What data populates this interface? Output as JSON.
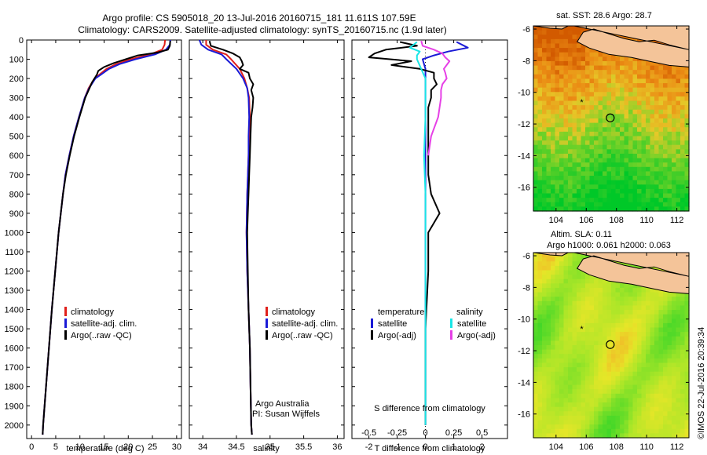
{
  "header": {
    "title_line1": "Argo profile: CS 5905018_20 13-Jul-2016 20160715_181 11.611S 107.59E",
    "title_line2": "Climatology: CARS2009. Satellite-adjusted climatology: synTS_20160715.nc (1.9d later)"
  },
  "colors": {
    "climatology": "#e0201b",
    "satellite": "#1a1ad6",
    "argo": "#000000",
    "sat_salinity": "#19e6e6",
    "argo_salinity_adj": "#e640e6",
    "land": "#f4c499"
  },
  "chart_data": [
    {
      "type": "line",
      "name": "temperature-profile",
      "xlabel": "temperature (deg C)",
      "ylabel": "",
      "xlim": [
        -1,
        31
      ],
      "ylim": [
        2070,
        0
      ],
      "xticks": [
        0,
        5,
        10,
        15,
        20,
        25,
        30
      ],
      "yticks": [
        0,
        100,
        200,
        300,
        400,
        500,
        600,
        700,
        800,
        900,
        1000,
        1100,
        1200,
        1300,
        1400,
        1500,
        1600,
        1700,
        1800,
        1900,
        2000
      ],
      "legend": [
        "climatology",
        "satellite-adj. clim.",
        "Argo(..raw -QC)"
      ],
      "series": [
        {
          "name": "climatology",
          "color": "#e0201b",
          "depth": [
            0,
            25,
            50,
            75,
            100,
            125,
            150,
            200,
            250,
            300,
            400,
            500,
            600,
            700,
            800,
            1000,
            1200,
            1400,
            1600,
            1800,
            2000,
            2050
          ],
          "values": [
            27.6,
            27.5,
            27.0,
            24.5,
            20.5,
            17.5,
            15.5,
            13.0,
            11.8,
            11.0,
            9.8,
            8.7,
            7.8,
            7.0,
            6.5,
            5.6,
            4.9,
            4.2,
            3.6,
            3.0,
            2.4,
            2.3
          ]
        },
        {
          "name": "satellite-adj. clim.",
          "color": "#1a1ad6",
          "depth": [
            0,
            25,
            50,
            75,
            100,
            125,
            150,
            200,
            250,
            300,
            400,
            500,
            600,
            700,
            800,
            1000,
            1200,
            1400,
            1600,
            1800,
            2000,
            2050
          ],
          "values": [
            28.7,
            28.6,
            27.8,
            25.5,
            21.5,
            18.2,
            16.0,
            13.2,
            11.9,
            11.0,
            9.8,
            8.7,
            7.8,
            7.0,
            6.5,
            5.6,
            4.9,
            4.2,
            3.6,
            3.0,
            2.4,
            2.3
          ]
        },
        {
          "name": "Argo(..raw -QC)",
          "color": "#000000",
          "depth": [
            5,
            30,
            50,
            65,
            80,
            100,
            120,
            140,
            160,
            180,
            200,
            220,
            250,
            300,
            400,
            500,
            600,
            700,
            800,
            1000,
            1200,
            1400,
            1600,
            1800,
            2000,
            2050
          ],
          "values": [
            28.7,
            28.6,
            28.2,
            26.0,
            22.0,
            19.5,
            17.0,
            15.0,
            13.8,
            13.5,
            13.0,
            12.5,
            12.0,
            11.1,
            9.9,
            8.8,
            7.9,
            7.1,
            6.5,
            5.6,
            4.9,
            4.2,
            3.6,
            3.0,
            2.4,
            2.3
          ]
        }
      ]
    },
    {
      "type": "line",
      "name": "salinity-profile",
      "xlabel": "salinity",
      "ylabel": "",
      "xlim": [
        33.8,
        36.1
      ],
      "ylim": [
        2070,
        0
      ],
      "xticks": [
        34,
        34.5,
        35,
        35.5,
        36
      ],
      "legend": [
        "climatology",
        "satellite-adj. clim.",
        "Argo(..raw -QC)"
      ],
      "series": [
        {
          "name": "climatology",
          "color": "#e0201b",
          "depth": [
            0,
            25,
            50,
            75,
            100,
            150,
            200,
            250,
            300,
            400,
            500,
            600,
            800,
            1000,
            1200,
            1400,
            1600,
            1800,
            2000,
            2050
          ],
          "values": [
            34.05,
            34.05,
            34.15,
            34.35,
            34.42,
            34.55,
            34.62,
            34.66,
            34.69,
            34.7,
            34.69,
            34.68,
            34.66,
            34.65,
            34.66,
            34.68,
            34.7,
            34.71,
            34.72,
            34.73
          ]
        },
        {
          "name": "satellite-adj. clim.",
          "color": "#1a1ad6",
          "depth": [
            0,
            25,
            50,
            75,
            100,
            150,
            200,
            250,
            300,
            400,
            500,
            600,
            800,
            1000,
            1200,
            1400,
            1600,
            1800,
            2000,
            2050
          ],
          "values": [
            33.95,
            33.98,
            34.08,
            34.28,
            34.35,
            34.5,
            34.6,
            34.66,
            34.68,
            34.69,
            34.68,
            34.68,
            34.66,
            34.65,
            34.66,
            34.68,
            34.7,
            34.71,
            34.72,
            34.73
          ]
        },
        {
          "name": "Argo(..raw -QC)",
          "color": "#000000",
          "depth": [
            5,
            30,
            50,
            70,
            90,
            110,
            130,
            150,
            170,
            200,
            230,
            260,
            300,
            350,
            400,
            500,
            600,
            700,
            800,
            900,
            1000,
            1200,
            1400,
            1600,
            1800,
            2000,
            2050
          ],
          "values": [
            34.1,
            34.12,
            34.3,
            34.45,
            34.55,
            34.58,
            34.6,
            34.55,
            34.68,
            34.7,
            34.75,
            34.72,
            34.75,
            34.74,
            34.72,
            34.71,
            34.7,
            34.69,
            34.68,
            34.67,
            34.66,
            34.67,
            34.68,
            34.7,
            34.71,
            34.72,
            34.73
          ]
        }
      ]
    },
    {
      "type": "line",
      "name": "difference-profile",
      "xlabel": "T difference from climatology",
      "xlabel_top": "S difference from climatology",
      "xlim": [
        -2.6,
        2.9
      ],
      "ylim": [
        2070,
        0
      ],
      "xticks": [
        -2,
        -1,
        0,
        1,
        2
      ],
      "xticks_top_labels": [
        "-0.5",
        "-0.25",
        "0",
        "0.25",
        "0.5"
      ],
      "xticks_top_values": [
        -2,
        -1,
        0,
        1,
        2
      ],
      "legend_groups": {
        "left_title": "temperature",
        "right_title": "salinity",
        "left": [
          "satellite",
          "Argo(-adj)"
        ],
        "right": [
          "satellite",
          "Argo(-adj)"
        ]
      },
      "series": [
        {
          "name": "temperature satellite",
          "color": "#1a1ad6",
          "depth": [
            10,
            40,
            60,
            80,
            100,
            150,
            200,
            300,
            400,
            600,
            800,
            1000,
            1400,
            2000
          ],
          "values": [
            1.1,
            1.5,
            0.8,
            0.3,
            -0.1,
            0.0,
            0.0,
            0.0,
            0.0,
            0.0,
            0.0,
            0.0,
            0.0,
            0.0
          ]
        },
        {
          "name": "temperature Argo(-adj)",
          "color": "#000000",
          "depth": [
            10,
            30,
            50,
            70,
            90,
            110,
            130,
            150,
            170,
            200,
            230,
            260,
            300,
            350,
            400,
            500,
            600,
            700,
            800,
            900,
            1000,
            1200,
            1500,
            2000
          ],
          "values": [
            -0.9,
            -0.3,
            -1.4,
            -1.8,
            -2.0,
            -0.5,
            -1.2,
            -0.2,
            0.3,
            0.3,
            0.4,
            0.2,
            0.2,
            0.1,
            0.1,
            0.1,
            0.1,
            0.1,
            0.2,
            0.5,
            0.1,
            0.1,
            0.0,
            0.0
          ]
        },
        {
          "name": "salinity satellite",
          "color": "#19e6e6",
          "depth": [
            10,
            40,
            60,
            80,
            100,
            200,
            400,
            600,
            800,
            1000,
            1400,
            2000
          ],
          "values": [
            -0.3,
            -0.55,
            -0.2,
            -0.3,
            -0.3,
            0.0,
            0.0,
            -0.05,
            0.0,
            0.0,
            0.0,
            0.0
          ]
        },
        {
          "name": "salinity Argo(-adj)",
          "color": "#e640e6",
          "depth": [
            5,
            30,
            50,
            70,
            90,
            110,
            130,
            150,
            170,
            200,
            230,
            260,
            300,
            350,
            400,
            500,
            600
          ],
          "values": [
            -0.15,
            -0.1,
            0.3,
            0.6,
            0.7,
            0.85,
            0.75,
            0.65,
            0.7,
            0.75,
            0.6,
            0.55,
            0.55,
            0.5,
            0.45,
            0.2,
            0.1
          ]
        }
      ]
    },
    {
      "type": "heatmap",
      "name": "sst-map",
      "title": "sat. SST: 28.6  Argo: 28.7",
      "xlim": [
        102.5,
        112.8
      ],
      "ylim": [
        -17.5,
        -5.8
      ],
      "xticks": [
        104,
        106,
        108,
        110,
        112
      ],
      "yticks": [
        -6,
        -8,
        -10,
        -12,
        -14,
        -16
      ],
      "float_position": [
        107.59,
        -11.611
      ],
      "previous_position": [
        105.7,
        -10.6
      ]
    },
    {
      "type": "heatmap",
      "name": "sla-map",
      "title_line1": "Altim. SLA: 0.11",
      "title_line2": "Argo h1000: 0.061  h2000: 0.063",
      "xlim": [
        102.5,
        112.8
      ],
      "ylim": [
        -17.5,
        -5.8
      ],
      "xticks": [
        104,
        106,
        108,
        110,
        112
      ],
      "yticks": [
        -6,
        -8,
        -10,
        -12,
        -14,
        -16
      ],
      "float_position": [
        107.59,
        -11.611
      ],
      "previous_position": [
        105.7,
        -10.6
      ]
    }
  ],
  "labels": {
    "owner_line1": "Argo Australia",
    "owner_line2": "PI: Susan Wijffels",
    "watermark": "©IMOS 22-Jul-2016 20:39:34"
  }
}
